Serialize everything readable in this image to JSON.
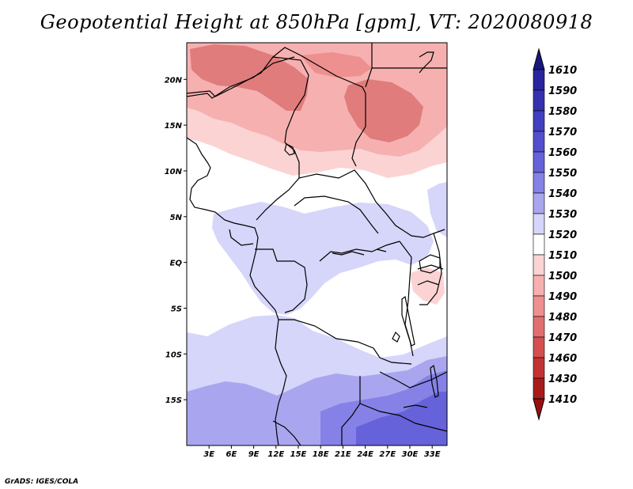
{
  "title": "Geopotential Height at 850hPa [gpm], VT: 2020080918",
  "credit": "GrADS: IGES/COLA",
  "map": {
    "lon_range": [
      0,
      35
    ],
    "lat_range": [
      -20,
      24
    ],
    "lat_ticks": [
      {
        "value": 20,
        "label": "20N"
      },
      {
        "value": 15,
        "label": "15N"
      },
      {
        "value": 10,
        "label": "10N"
      },
      {
        "value": 5,
        "label": "5N"
      },
      {
        "value": 0,
        "label": "EQ"
      },
      {
        "value": -5,
        "label": "5S"
      },
      {
        "value": -10,
        "label": "10S"
      },
      {
        "value": -15,
        "label": "15S"
      }
    ],
    "lon_ticks": [
      {
        "value": 3,
        "label": "3E"
      },
      {
        "value": 6,
        "label": "6E"
      },
      {
        "value": 9,
        "label": "9E"
      },
      {
        "value": 12,
        "label": "12E"
      },
      {
        "value": 15,
        "label": "15E"
      },
      {
        "value": 18,
        "label": "18E"
      },
      {
        "value": 21,
        "label": "21E"
      },
      {
        "value": 24,
        "label": "24E"
      },
      {
        "value": 27,
        "label": "27E"
      },
      {
        "value": 30,
        "label": "30E"
      },
      {
        "value": 33,
        "label": "33E"
      }
    ]
  },
  "colorbar": {
    "levels": [
      {
        "label": "1610",
        "color": "#1e1a8c"
      },
      {
        "label": "1590",
        "color": "#29239e"
      },
      {
        "label": "1580",
        "color": "#3530b0"
      },
      {
        "label": "1570",
        "color": "#423ec0"
      },
      {
        "label": "1560",
        "color": "#524ece"
      },
      {
        "label": "1550",
        "color": "#6662da"
      },
      {
        "label": "1540",
        "color": "#8581e6"
      },
      {
        "label": "1530",
        "color": "#a9a6ef"
      },
      {
        "label": "1520",
        "color": "#d6d5fa"
      },
      {
        "label": "1510",
        "color": "#ffffff"
      },
      {
        "label": "1500",
        "color": "#fcd3d3"
      },
      {
        "label": "1490",
        "color": "#f6b0b0"
      },
      {
        "label": "1480",
        "color": "#ee9090"
      },
      {
        "label": "1470",
        "color": "#e26f6f"
      },
      {
        "label": "1460",
        "color": "#d44f4f"
      },
      {
        "label": "1430",
        "color": "#c33232"
      },
      {
        "label": "1410",
        "color": "#a81b1b"
      }
    ],
    "top_triangle_color": "#1a1680",
    "bottom_triangle_color": "#991010"
  },
  "field_colors": {
    "white": "#ffffff",
    "pink_light": "#fcd3d3",
    "pink_mid": "#f6b0b0",
    "pink_dark": "#ee9090",
    "pink_darker": "#e07c7c",
    "blue_light": "#d6d5fa",
    "blue_mid": "#a9a6ef",
    "blue_dark": "#8581e6",
    "blue_darker": "#6662da"
  }
}
